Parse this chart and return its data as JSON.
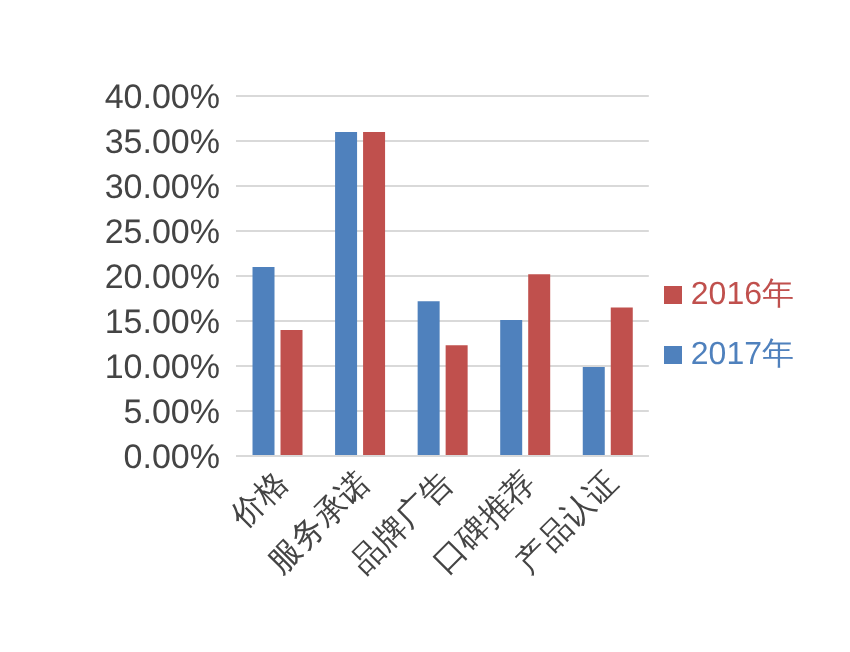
{
  "chart_data": {
    "type": "bar",
    "categories": [
      "价格",
      "服务承诺",
      "品牌广告",
      "口碑推荐",
      "产品认证"
    ],
    "series": [
      {
        "name": "2017年",
        "color": "#4f81bd",
        "values": [
          21.0,
          36.0,
          17.2,
          15.1,
          9.9
        ]
      },
      {
        "name": "2016年",
        "color": "#c0504d",
        "values": [
          14.0,
          36.0,
          12.3,
          20.2,
          16.5
        ]
      }
    ],
    "ylim": [
      0,
      40
    ],
    "yticks": [
      {
        "value": 0,
        "label": "0.00%"
      },
      {
        "value": 5,
        "label": "5.00%"
      },
      {
        "value": 10,
        "label": "10.00%"
      },
      {
        "value": 15,
        "label": "15.00%"
      },
      {
        "value": 20,
        "label": "20.00%"
      },
      {
        "value": 25,
        "label": "25.00%"
      },
      {
        "value": 30,
        "label": "30.00%"
      },
      {
        "value": 35,
        "label": "35.00%"
      },
      {
        "value": 40,
        "label": "40.00%"
      }
    ],
    "grid": "y",
    "legend": "right"
  }
}
